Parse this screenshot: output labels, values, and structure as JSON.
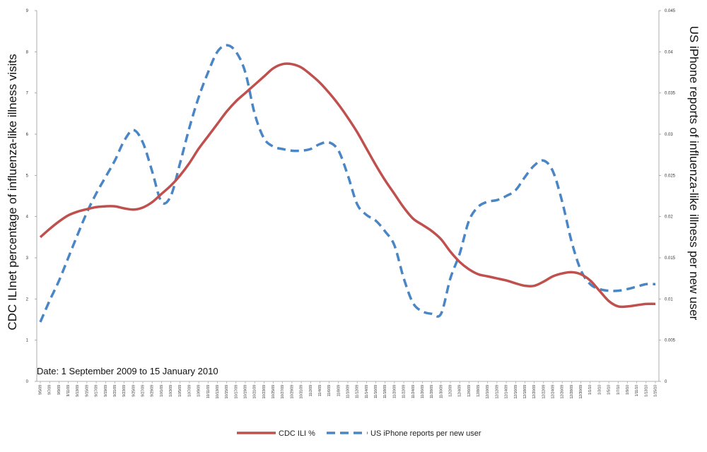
{
  "chart_data": {
    "type": "line",
    "ylabel": "CDC ILInet percentage of influenza-like illness visits",
    "y2label": "US iPhone reports of influenza-like illness per new user",
    "annotation": "Date: 1 September 2009 to 15 January 2010",
    "ylim": [
      0,
      9
    ],
    "y2lim": [
      0,
      0.045
    ],
    "yticks": [
      "0",
      "1",
      "2",
      "3",
      "4",
      "5",
      "6",
      "7",
      "8",
      "9"
    ],
    "y2ticks": [
      "0",
      "0.005",
      "0.01",
      "0.015",
      "0.02",
      "0.025",
      "0.03",
      "0.035",
      "0.04",
      "0.045"
    ],
    "grid": false,
    "legend": "bottom",
    "categories": [
      "9/5/09",
      "9/7/09",
      "9/9/09",
      "9/11/09",
      "9/13/09",
      "9/15/09",
      "9/17/09",
      "9/19/09",
      "9/21/09",
      "9/23/09",
      "9/25/09",
      "9/27/09",
      "9/29/09",
      "10/1/09",
      "10/3/09",
      "10/5/09",
      "10/7/09",
      "10/9/09",
      "10/11/09",
      "10/13/09",
      "10/15/09",
      "10/17/09",
      "10/19/09",
      "10/21/09",
      "10/23/09",
      "10/25/09",
      "10/27/09",
      "10/29/09",
      "10/31/09",
      "11/2/09",
      "11/4/09",
      "11/6/09",
      "11/8/09",
      "11/10/09",
      "11/12/09",
      "11/14/09",
      "11/16/09",
      "11/18/09",
      "11/20/09",
      "11/22/09",
      "11/24/09",
      "11/26/09",
      "11/28/09",
      "11/30/09",
      "12/2/09",
      "12/4/09",
      "12/6/09",
      "12/8/09",
      "12/10/09",
      "12/12/09",
      "12/14/09",
      "12/16/09",
      "12/18/09",
      "12/20/09",
      "12/22/09",
      "12/24/09",
      "12/26/09",
      "12/28/09",
      "12/30/09",
      "1/1/10",
      "1/3/10",
      "1/5/10",
      "1/7/10",
      "1/9/10",
      "1/11/10",
      "1/13/10",
      "1/15/10"
    ],
    "series": [
      {
        "name": "CDC ILI %",
        "axis": "left",
        "style": "solid",
        "color": "#c0504d",
        "values": [
          3.5,
          3.7,
          3.88,
          4.03,
          4.12,
          4.18,
          4.23,
          4.25,
          4.25,
          4.2,
          4.17,
          4.22,
          4.35,
          4.55,
          4.75,
          5.0,
          5.3,
          5.65,
          5.95,
          6.25,
          6.55,
          6.8,
          7.0,
          7.2,
          7.4,
          7.6,
          7.7,
          7.7,
          7.62,
          7.45,
          7.25,
          7.0,
          6.72,
          6.4,
          6.05,
          5.65,
          5.25,
          4.88,
          4.55,
          4.22,
          3.95,
          3.8,
          3.65,
          3.45,
          3.15,
          2.9,
          2.72,
          2.6,
          2.55,
          2.5,
          2.45,
          2.38,
          2.32,
          2.32,
          2.42,
          2.55,
          2.62,
          2.65,
          2.6,
          2.45,
          2.2,
          1.95,
          1.82,
          1.82,
          1.85,
          1.88,
          1.88
        ]
      },
      {
        "name": "US iPhone reports per new user",
        "axis": "right",
        "style": "dashed",
        "color": "#4a86c5",
        "values": [
          0.0072,
          0.0098,
          0.0122,
          0.015,
          0.0178,
          0.0205,
          0.0228,
          0.0248,
          0.0268,
          0.0292,
          0.0305,
          0.029,
          0.0255,
          0.0218,
          0.0225,
          0.0265,
          0.0308,
          0.0345,
          0.0375,
          0.04,
          0.0408,
          0.04,
          0.0375,
          0.0325,
          0.0295,
          0.0285,
          0.0282,
          0.028,
          0.028,
          0.0282,
          0.0288,
          0.029,
          0.028,
          0.025,
          0.0215,
          0.0202,
          0.0195,
          0.0182,
          0.0165,
          0.0125,
          0.0095,
          0.0085,
          0.0082,
          0.0082,
          0.0125,
          0.0155,
          0.0195,
          0.0212,
          0.0218,
          0.022,
          0.0225,
          0.0232,
          0.0248,
          0.0262,
          0.0268,
          0.0255,
          0.0218,
          0.017,
          0.0135,
          0.0118,
          0.0112,
          0.011,
          0.011,
          0.0112,
          0.0115,
          0.0118,
          0.0118
        ]
      }
    ]
  }
}
